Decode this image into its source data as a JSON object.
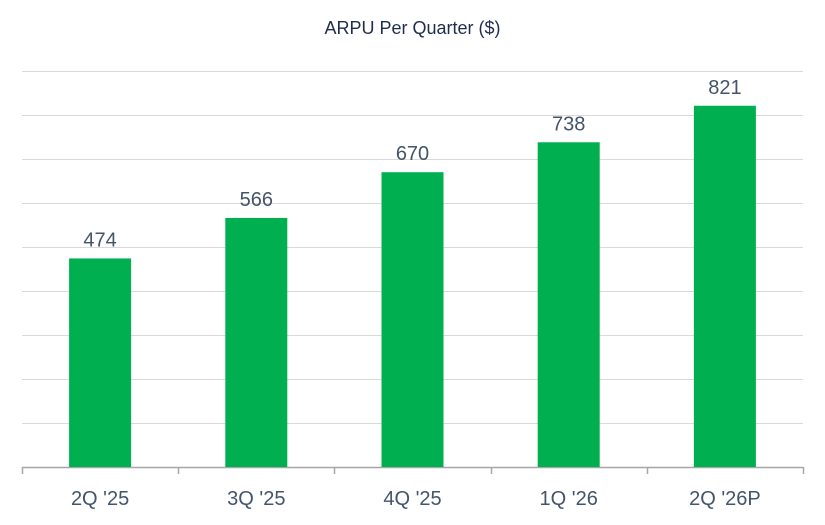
{
  "chart_data": {
    "type": "bar",
    "title": "ARPU Per Quarter ($)",
    "xlabel": "",
    "ylabel": "",
    "categories": [
      "2Q '25",
      "3Q '25",
      "4Q '25",
      "1Q '26",
      "2Q '26P"
    ],
    "values": [
      474,
      566,
      670,
      738,
      821
    ],
    "ylim": [
      0,
      900
    ],
    "grid": true,
    "legend": "none",
    "bar_color": "#00b050",
    "gridline_color": "#d9d9d9",
    "text_color": "#44546a"
  }
}
